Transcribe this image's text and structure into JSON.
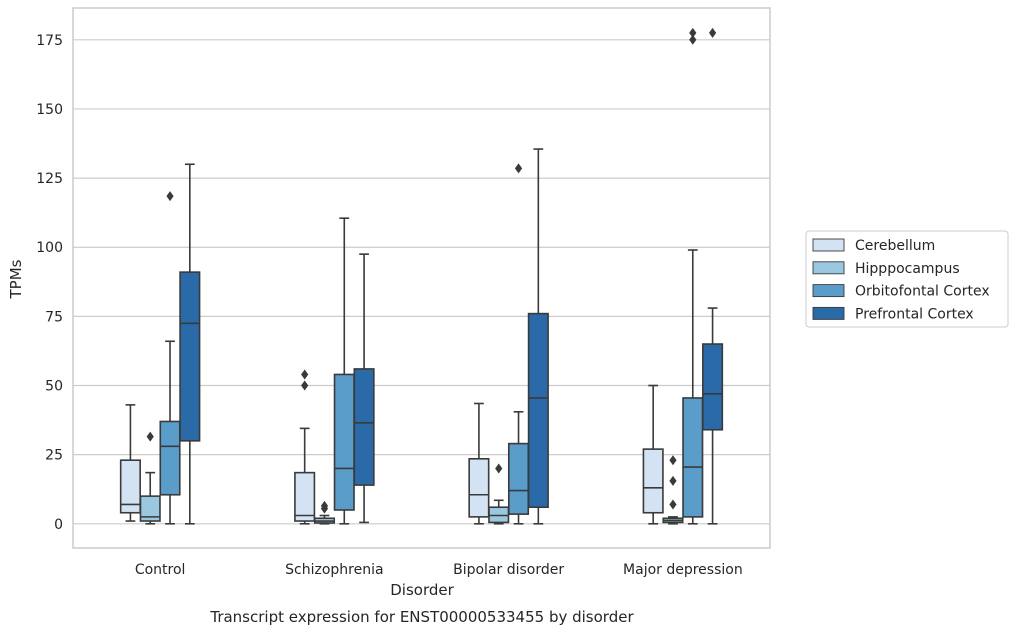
{
  "caption": "Transcript expression for ENST00000533455 by disorder",
  "chart_data": {
    "type": "boxplot",
    "xlabel": "Disorder",
    "ylabel": "TPMs",
    "ylim": [
      -8.75,
      186.5
    ],
    "yticks": [
      0,
      25,
      50,
      75,
      100,
      125,
      150,
      175
    ],
    "grid": "horizontal",
    "legend_position": "right",
    "categories": [
      "Control",
      "Schizophrenia",
      "Bipolar disorder",
      "Major depression"
    ],
    "series": [
      {
        "name": "Cerebellum",
        "color": "#d3e3f3",
        "boxes": [
          {
            "whisker_low": 1.0,
            "q1": 4.0,
            "median": 7.0,
            "q3": 23.0,
            "whisker_high": 43.0,
            "outliers": []
          },
          {
            "whisker_low": 0.0,
            "q1": 1.0,
            "median": 3.0,
            "q3": 18.5,
            "whisker_high": 34.5,
            "outliers": [
              50.0,
              54.0
            ]
          },
          {
            "whisker_low": 0.0,
            "q1": 2.5,
            "median": 10.5,
            "q3": 23.5,
            "whisker_high": 43.5,
            "outliers": []
          },
          {
            "whisker_low": 0.0,
            "q1": 4.0,
            "median": 13.0,
            "q3": 27.0,
            "whisker_high": 50.0,
            "outliers": []
          }
        ]
      },
      {
        "name": "Hipppocampus",
        "color": "#9ac8e0",
        "boxes": [
          {
            "whisker_low": 0.0,
            "q1": 1.0,
            "median": 2.5,
            "q3": 10.0,
            "whisker_high": 18.5,
            "outliers": [
              31.5
            ]
          },
          {
            "whisker_low": 0.0,
            "q1": 0.3,
            "median": 1.0,
            "q3": 2.0,
            "whisker_high": 3.0,
            "outliers": [
              5.5,
              6.5
            ]
          },
          {
            "whisker_low": 0.0,
            "q1": 0.5,
            "median": 3.0,
            "q3": 6.0,
            "whisker_high": 8.5,
            "outliers": [
              20.0
            ]
          },
          {
            "whisker_low": 0.0,
            "q1": 0.5,
            "median": 1.2,
            "q3": 2.0,
            "whisker_high": 2.5,
            "outliers": [
              7.0,
              15.5,
              23.0
            ]
          }
        ]
      },
      {
        "name": "Orbitofontal Cortex",
        "color": "#5a9cca",
        "boxes": [
          {
            "whisker_low": 0.0,
            "q1": 10.5,
            "median": 28.0,
            "q3": 37.0,
            "whisker_high": 66.0,
            "outliers": [
              118.5
            ]
          },
          {
            "whisker_low": 0.0,
            "q1": 5.0,
            "median": 20.0,
            "q3": 54.0,
            "whisker_high": 110.5,
            "outliers": []
          },
          {
            "whisker_low": 0.0,
            "q1": 3.5,
            "median": 12.0,
            "q3": 29.0,
            "whisker_high": 40.5,
            "outliers": [
              128.5
            ]
          },
          {
            "whisker_low": 0.0,
            "q1": 2.5,
            "median": 20.5,
            "q3": 45.5,
            "whisker_high": 99.0,
            "outliers": [
              175.0,
              177.5
            ]
          }
        ]
      },
      {
        "name": "Prefrontal Cortex",
        "color": "#2a6aa8",
        "boxes": [
          {
            "whisker_low": 0.0,
            "q1": 30.0,
            "median": 72.5,
            "q3": 91.0,
            "whisker_high": 130.0,
            "outliers": []
          },
          {
            "whisker_low": 0.5,
            "q1": 14.0,
            "median": 36.5,
            "q3": 56.0,
            "whisker_high": 97.5,
            "outliers": []
          },
          {
            "whisker_low": 0.0,
            "q1": 6.0,
            "median": 45.5,
            "q3": 76.0,
            "whisker_high": 135.5,
            "outliers": []
          },
          {
            "whisker_low": 0.0,
            "q1": 34.0,
            "median": 47.0,
            "q3": 65.0,
            "whisker_high": 78.0,
            "outliers": [
              177.5
            ]
          }
        ]
      }
    ]
  }
}
